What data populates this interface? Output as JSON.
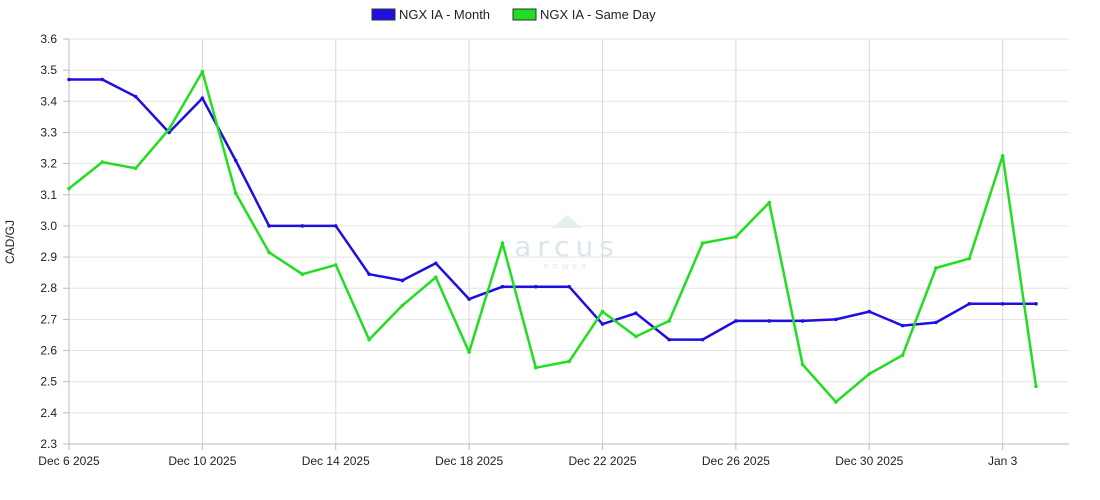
{
  "chart_data": {
    "type": "line",
    "ylabel": "CAD/GJ",
    "ylim": [
      2.3,
      3.6
    ],
    "yticks": [
      "2.3",
      "2.4",
      "2.5",
      "2.6",
      "2.7",
      "2.8",
      "2.9",
      "3.0",
      "3.1",
      "3.2",
      "3.3",
      "3.4",
      "3.5",
      "3.6"
    ],
    "x": [
      "2025-12-06",
      "2025-12-07",
      "2025-12-08",
      "2025-12-09",
      "2025-12-10",
      "2025-12-11",
      "2025-12-12",
      "2025-12-13",
      "2025-12-14",
      "2025-12-15",
      "2025-12-16",
      "2025-12-17",
      "2025-12-18",
      "2025-12-19",
      "2025-12-20",
      "2025-12-21",
      "2025-12-22",
      "2025-12-23",
      "2025-12-24",
      "2025-12-25",
      "2025-12-26",
      "2025-12-27",
      "2025-12-28",
      "2025-12-29",
      "2025-12-30",
      "2025-12-31",
      "2026-01-01",
      "2026-01-02",
      "2026-01-03",
      "2026-01-04"
    ],
    "xticks": [
      {
        "date": "2025-12-06",
        "label": "Dec 6 2025"
      },
      {
        "date": "2025-12-10",
        "label": "Dec 10 2025"
      },
      {
        "date": "2025-12-14",
        "label": "Dec 14 2025"
      },
      {
        "date": "2025-12-18",
        "label": "Dec 18 2025"
      },
      {
        "date": "2025-12-22",
        "label": "Dec 22 2025"
      },
      {
        "date": "2025-12-26",
        "label": "Dec 26 2025"
      },
      {
        "date": "2025-12-30",
        "label": "Dec 30 2025"
      },
      {
        "date": "2026-01-03",
        "label": "Jan 3"
      }
    ],
    "series": [
      {
        "name": "NGX IA - Month",
        "color": "#1f0fe0",
        "values": [
          3.47,
          3.47,
          3.415,
          3.3,
          3.41,
          3.21,
          3.0,
          3.0,
          3.0,
          2.845,
          2.825,
          2.88,
          2.765,
          2.805,
          2.805,
          2.805,
          2.685,
          2.72,
          2.635,
          2.635,
          2.695,
          2.695,
          2.695,
          2.7,
          2.725,
          2.68,
          2.69,
          2.75,
          2.75,
          2.75
        ]
      },
      {
        "name": "NGX IA - Same Day",
        "color": "#22dd22",
        "values": [
          3.12,
          3.205,
          3.185,
          3.31,
          3.495,
          3.105,
          2.915,
          2.845,
          2.875,
          2.635,
          2.745,
          2.835,
          2.595,
          2.945,
          2.545,
          2.565,
          2.725,
          2.645,
          2.695,
          2.945,
          2.965,
          3.075,
          2.555,
          2.435,
          2.525,
          2.585,
          2.865,
          2.895,
          3.225,
          2.485
        ]
      }
    ],
    "legend": "top-center",
    "grid": true
  },
  "watermark": {
    "logo_text": "arcus",
    "sub_text": "POWER"
  }
}
